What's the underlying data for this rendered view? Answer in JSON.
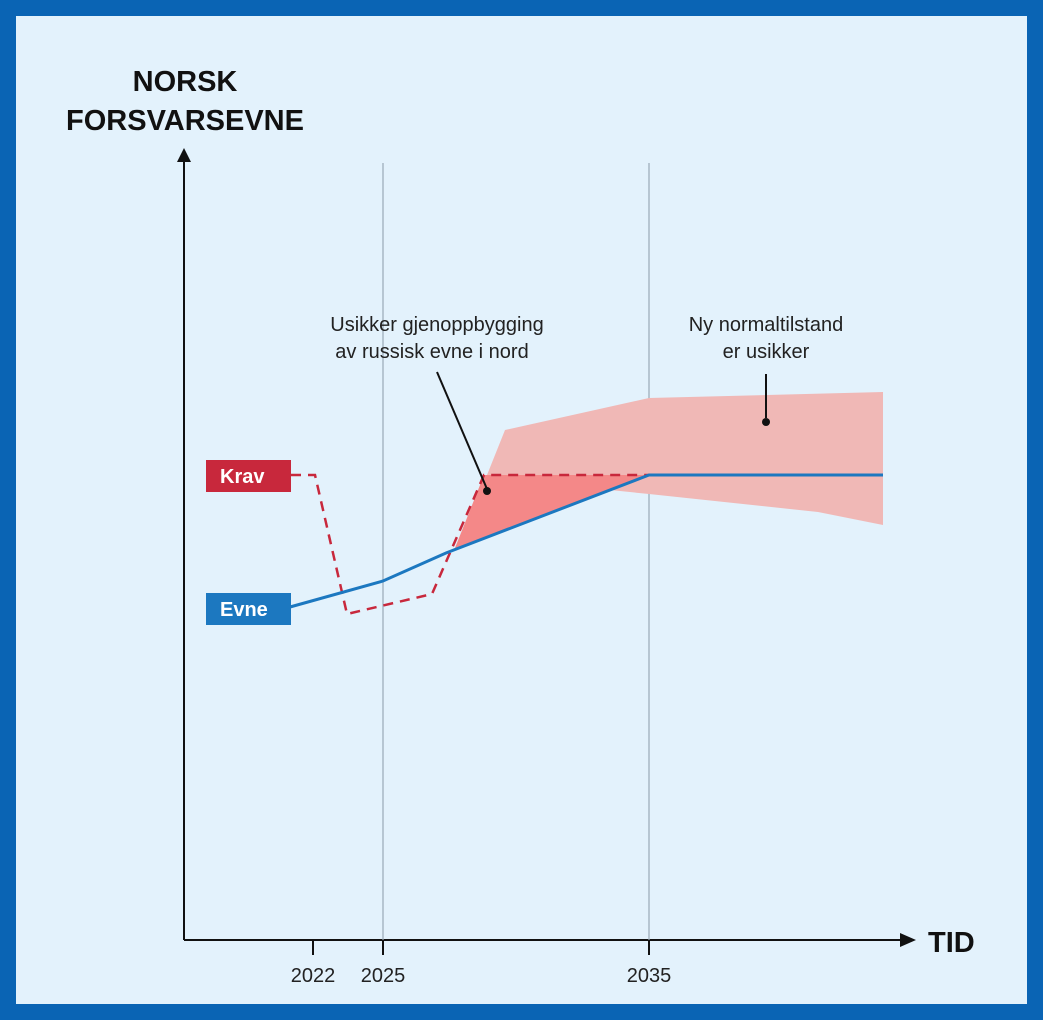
{
  "chart_data": {
    "type": "line",
    "ylabel_lines": [
      "NORSK",
      "FORSVARSEVNE"
    ],
    "xlabel": "TID",
    "x_ticks": [
      "2022",
      "2025",
      "2035"
    ],
    "series": [
      {
        "name": "Krav",
        "style": "dashed",
        "color": "#c8283c",
        "points": [
          [
            2021.7,
            63
          ],
          [
            2022.1,
            63
          ],
          [
            2023.4,
            25
          ],
          [
            2024.9,
            27
          ],
          [
            2026.8,
            29
          ],
          [
            2028.5,
            63
          ],
          [
            2035,
            63
          ],
          [
            2044,
            63
          ]
        ]
      },
      {
        "name": "Evne",
        "style": "solid",
        "color": "#1c78c0",
        "points": [
          [
            2021.7,
            27
          ],
          [
            2025,
            34
          ],
          [
            2027.5,
            44
          ],
          [
            2035,
            63
          ],
          [
            2044,
            63
          ]
        ]
      }
    ],
    "bands": [
      {
        "description": "uncertainty range",
        "color": "#f08a8a",
        "upper": [
          [
            2028,
            63
          ],
          [
            2029,
            80
          ],
          [
            2035,
            85
          ],
          [
            2044,
            87
          ]
        ],
        "lower": [
          [
            2035,
            63
          ],
          [
            2034,
            51
          ],
          [
            2044,
            45
          ]
        ]
      }
    ],
    "annotations": [
      {
        "lines": [
          "Usikker gjenoppbygging",
          "av russisk evne i nord"
        ]
      },
      {
        "lines": [
          "Ny normaltilstand",
          "er usikker"
        ]
      }
    ],
    "grid": false,
    "vertical_reference_lines": [
      "2025",
      "2035"
    ]
  }
}
